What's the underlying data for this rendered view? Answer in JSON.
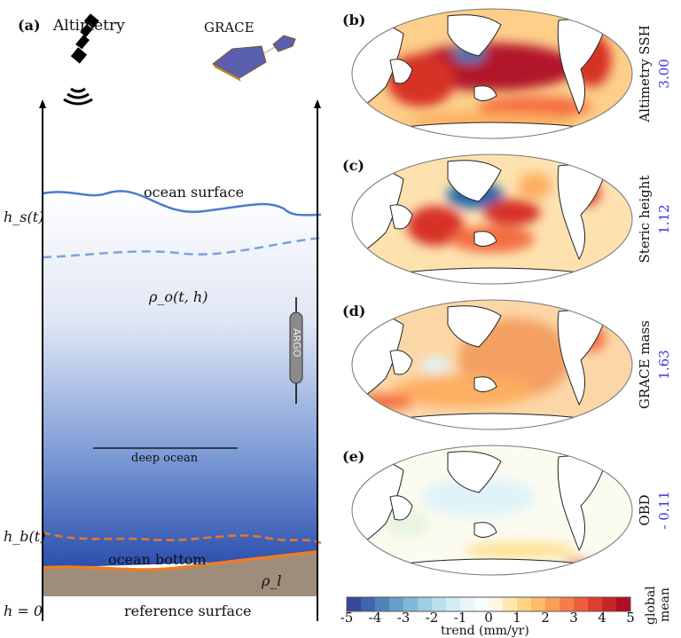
{
  "panel_a": {
    "label": "(a)",
    "altimetry": "Altimetry",
    "grace": "GRACE",
    "hs": "h_s(t)",
    "hb": "h_b(t)",
    "h0": "h = 0",
    "ocean_surface": "ocean surface",
    "rho_o": "ρ_o(t, h)",
    "argo": "ARGO",
    "deep_ocean": "deep ocean",
    "ocean_bottom": "ocean bottom",
    "rho_l": "ρ_l",
    "reference_surface": "reference surface"
  },
  "maps": [
    {
      "label": "(b)",
      "title": "Altimetry SSH",
      "global_mean": "3.00"
    },
    {
      "label": "(c)",
      "title": "Steric height",
      "global_mean": "1.12"
    },
    {
      "label": "(d)",
      "title": "GRACE mass",
      "global_mean": "1.63"
    },
    {
      "label": "(e)",
      "title": "OBD",
      "global_mean": "- 0.11"
    }
  ],
  "colorbar": {
    "ticks": [
      "-5",
      "-4",
      "-3",
      "-2",
      "-1",
      "0",
      "1",
      "2",
      "3",
      "4",
      "5"
    ],
    "label": "trend (mm/yr)",
    "side_label": "global mean",
    "range": [
      -5,
      5
    ],
    "colors": [
      "#313695",
      "#4575b4",
      "#74add1",
      "#abd9e9",
      "#e0f3f8",
      "#ffffff",
      "#fee090",
      "#fdae61",
      "#f46d43",
      "#d73027",
      "#a50026"
    ]
  }
}
